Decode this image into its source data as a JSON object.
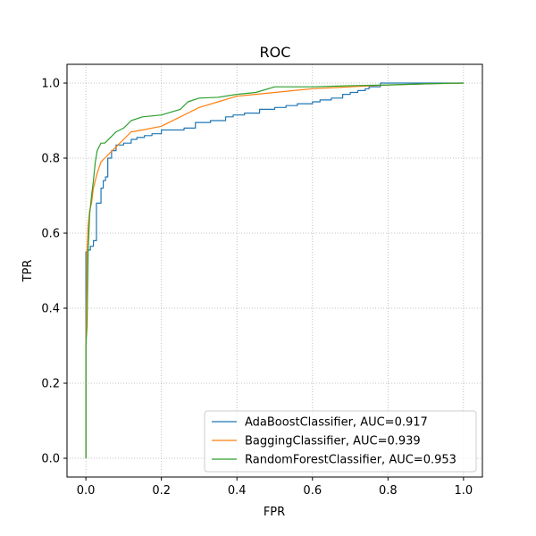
{
  "chart_data": {
    "type": "line",
    "title": "ROC",
    "xlabel": "FPR",
    "ylabel": "TPR",
    "xlim": [
      -0.05,
      1.05
    ],
    "ylim": [
      -0.05,
      1.05
    ],
    "x_ticks": [
      "0.0",
      "0.2",
      "0.4",
      "0.6",
      "0.8",
      "1.0"
    ],
    "y_ticks": [
      "0.0",
      "0.2",
      "0.4",
      "0.6",
      "0.8",
      "1.0"
    ],
    "grid": true,
    "legend_position": "lower-right",
    "series": [
      {
        "name": "AdaBoostClassifier, AUC=0.917",
        "color": "#1f77b4",
        "step": true,
        "x": [
          0.0,
          0.0,
          0.005,
          0.005,
          0.012,
          0.012,
          0.02,
          0.02,
          0.028,
          0.028,
          0.04,
          0.04,
          0.046,
          0.046,
          0.052,
          0.052,
          0.058,
          0.058,
          0.068,
          0.068,
          0.08,
          0.08,
          0.1,
          0.1,
          0.12,
          0.12,
          0.135,
          0.135,
          0.155,
          0.155,
          0.175,
          0.175,
          0.2,
          0.2,
          0.26,
          0.26,
          0.275,
          0.275,
          0.29,
          0.29,
          0.33,
          0.33,
          0.37,
          0.37,
          0.39,
          0.39,
          0.42,
          0.42,
          0.46,
          0.46,
          0.48,
          0.48,
          0.5,
          0.5,
          0.53,
          0.53,
          0.56,
          0.56,
          0.6,
          0.6,
          0.62,
          0.62,
          0.65,
          0.65,
          0.68,
          0.68,
          0.7,
          0.7,
          0.72,
          0.72,
          0.74,
          0.74,
          0.75,
          0.75,
          0.78,
          0.78,
          0.8,
          0.8,
          1.0
        ],
        "y": [
          0.0,
          0.55,
          0.55,
          0.555,
          0.555,
          0.565,
          0.565,
          0.58,
          0.58,
          0.68,
          0.68,
          0.72,
          0.72,
          0.74,
          0.74,
          0.75,
          0.75,
          0.8,
          0.8,
          0.82,
          0.82,
          0.835,
          0.835,
          0.84,
          0.84,
          0.85,
          0.85,
          0.855,
          0.855,
          0.86,
          0.86,
          0.865,
          0.865,
          0.875,
          0.875,
          0.88,
          0.88,
          0.88,
          0.88,
          0.895,
          0.895,
          0.9,
          0.9,
          0.91,
          0.91,
          0.915,
          0.915,
          0.92,
          0.92,
          0.93,
          0.93,
          0.93,
          0.93,
          0.935,
          0.935,
          0.94,
          0.94,
          0.945,
          0.945,
          0.95,
          0.95,
          0.955,
          0.955,
          0.96,
          0.96,
          0.97,
          0.97,
          0.975,
          0.975,
          0.98,
          0.98,
          0.985,
          0.985,
          0.99,
          0.99,
          1.0,
          1.0,
          1.0,
          1.0
        ]
      },
      {
        "name": "BaggingClassifier, AUC=0.939",
        "color": "#ff7f0e",
        "step": false,
        "x": [
          0.0,
          0.0,
          0.003,
          0.006,
          0.01,
          0.015,
          0.02,
          0.03,
          0.04,
          0.05,
          0.06,
          0.07,
          0.08,
          0.1,
          0.12,
          0.15,
          0.2,
          0.25,
          0.3,
          0.35,
          0.4,
          0.45,
          0.5,
          0.55,
          0.6,
          0.7,
          0.8,
          0.9,
          1.0
        ],
        "y": [
          0.0,
          0.3,
          0.55,
          0.62,
          0.66,
          0.68,
          0.72,
          0.76,
          0.79,
          0.8,
          0.81,
          0.82,
          0.83,
          0.85,
          0.87,
          0.875,
          0.885,
          0.91,
          0.935,
          0.95,
          0.965,
          0.97,
          0.975,
          0.98,
          0.985,
          0.99,
          0.995,
          0.998,
          1.0
        ]
      },
      {
        "name": "RandomForestClassifier, AUC=0.953",
        "color": "#2ca02c",
        "step": false,
        "x": [
          0.0,
          0.0,
          0.003,
          0.006,
          0.01,
          0.015,
          0.02,
          0.025,
          0.03,
          0.035,
          0.04,
          0.05,
          0.07,
          0.08,
          0.1,
          0.12,
          0.15,
          0.2,
          0.25,
          0.27,
          0.3,
          0.35,
          0.4,
          0.45,
          0.5,
          0.6,
          0.7,
          0.8,
          0.9,
          1.0
        ],
        "y": [
          0.0,
          0.3,
          0.35,
          0.55,
          0.65,
          0.7,
          0.74,
          0.79,
          0.82,
          0.83,
          0.84,
          0.84,
          0.86,
          0.87,
          0.88,
          0.9,
          0.91,
          0.915,
          0.93,
          0.95,
          0.96,
          0.962,
          0.97,
          0.975,
          0.99,
          0.99,
          0.993,
          0.995,
          0.998,
          1.0
        ]
      }
    ]
  }
}
